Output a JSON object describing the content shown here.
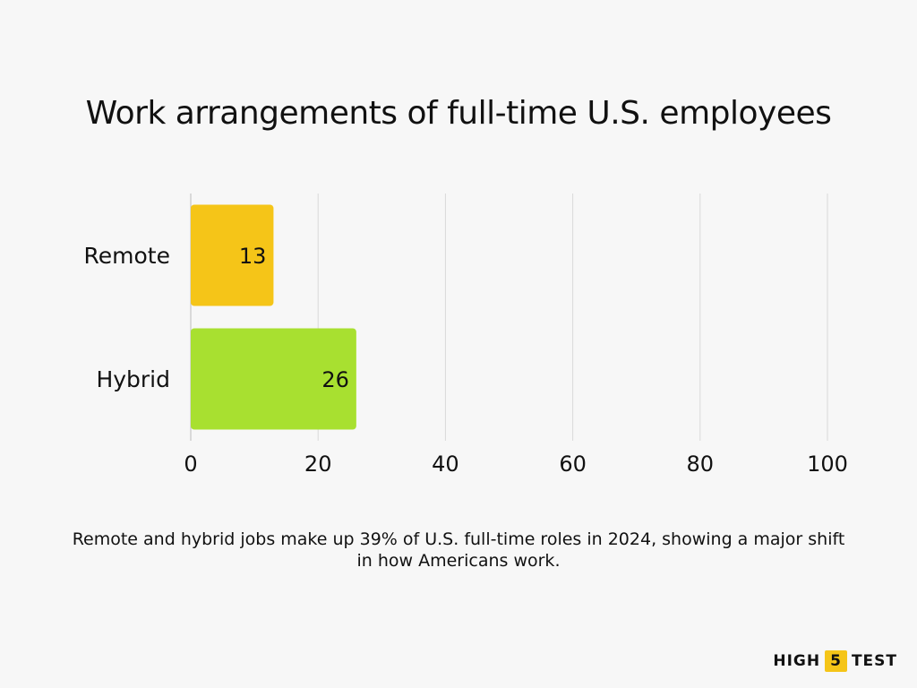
{
  "chart_data": {
    "type": "bar",
    "orientation": "horizontal",
    "title": "Work arrangements of full-time U.S. employees",
    "subtitle": "Remote and hybrid jobs make up 39% of U.S. full-time roles in 2024, showing a major shift in how Americans work.",
    "categories": [
      "Remote",
      "Hybrid"
    ],
    "values": [
      13,
      26
    ],
    "bar_colors": [
      "#f5c518",
      "#a8e030"
    ],
    "xlim": [
      0,
      100
    ],
    "xticks": [
      "0",
      "20",
      "40",
      "60",
      "80",
      "100"
    ],
    "grid": true,
    "legend": "none"
  },
  "logo": {
    "left": "HIGH",
    "mid": "5",
    "right": "TEST"
  }
}
